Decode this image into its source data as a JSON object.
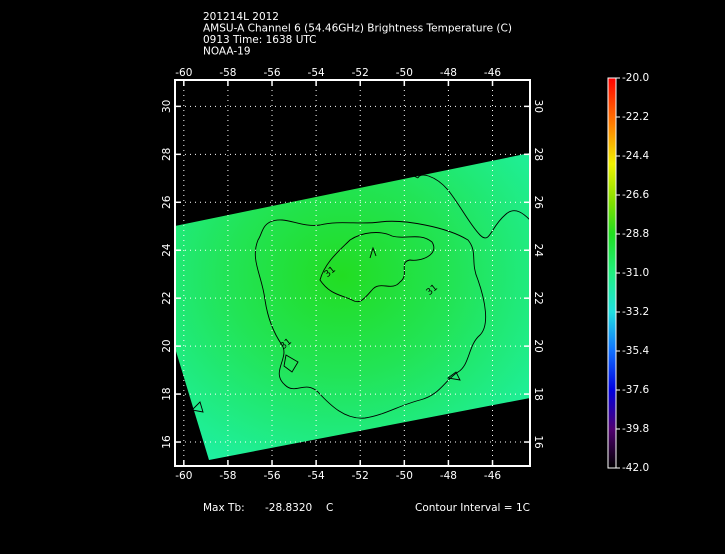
{
  "chart_data": {
    "type": "contour-map",
    "title_lines": [
      "201214L 2012",
      "AMSU-A Channel 6 (54.46GHz) Brightness Temperature (C)",
      "0913 Time: 1638 UTC",
      "NOAA-19"
    ],
    "xlim": [
      -60.4,
      -44.3
    ],
    "xticks": [
      -60,
      -58,
      -56,
      -54,
      -52,
      -50,
      -48,
      -46
    ],
    "ylim": [
      15.0,
      31.1
    ],
    "yticks": [
      16,
      18,
      20,
      22,
      24,
      26,
      28,
      30
    ],
    "grid": true,
    "contour_labels": [
      "31",
      "31",
      "31"
    ],
    "colorbar": {
      "lim": [
        -42,
        -20
      ],
      "ticks": [
        {
          "value": -20,
          "label": "-20.0"
        },
        -22.2,
        -24.4,
        -26.6,
        -28.8,
        {
          "value": -31,
          "label": "-31.0"
        },
        -33.2,
        -35.4,
        -37.6,
        -39.8,
        {
          "value": -42,
          "label": "-42.0"
        }
      ]
    },
    "footer": {
      "max_label": "Max Tb:",
      "max_value": "-28.8320",
      "max_unit": "C",
      "contour_interval": "Contour Interval = 1C"
    }
  }
}
